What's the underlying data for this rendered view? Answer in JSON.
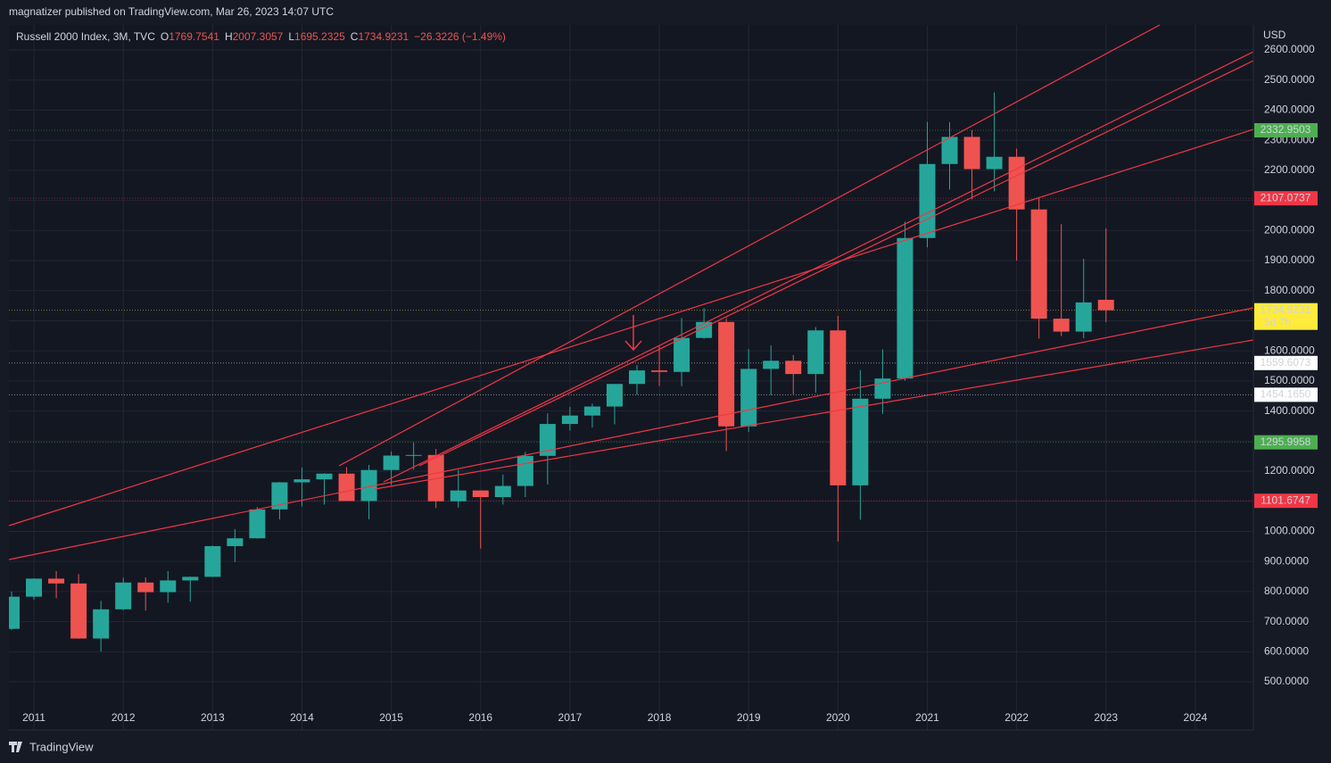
{
  "header": {
    "attribution": "magnatizer published on TradingView.com, Mar 26, 2023 14:07 UTC"
  },
  "chart_data": {
    "type": "candlestick",
    "legend": {
      "symbol": "Russell 2000 Index, 3M, TVC",
      "items": [
        {
          "label": "O",
          "value": "1769.7541"
        },
        {
          "label": "H",
          "value": "2007.3057"
        },
        {
          "label": "L",
          "value": "1695.2325"
        },
        {
          "label": "C",
          "value": "1734.9231"
        }
      ],
      "change": "−26.3226 (−1.49%)"
    },
    "currency": "USD",
    "up_color": "#26a69a",
    "down_color": "#ef5350",
    "x": [
      2010.75,
      2011,
      2011.25,
      2011.5,
      2011.75,
      2012,
      2012.25,
      2012.5,
      2012.75,
      2013,
      2013.25,
      2013.5,
      2013.75,
      2014,
      2014.25,
      2014.5,
      2014.75,
      2015,
      2015.25,
      2015.5,
      2015.75,
      2016,
      2016.25,
      2016.5,
      2016.75,
      2017,
      2017.25,
      2017.5,
      2017.75,
      2018,
      2018.25,
      2018.5,
      2018.75,
      2019,
      2019.25,
      2019.5,
      2019.75,
      2020,
      2020.25,
      2020.5,
      2020.75,
      2021,
      2021.25,
      2021.5,
      2021.75,
      2022,
      2022.25,
      2022.5,
      2022.75,
      2023
    ],
    "open": [
      676,
      783,
      843,
      827,
      644,
      741,
      830,
      798,
      837,
      849,
      951,
      977,
      1073,
      1163,
      1173,
      1192,
      1101,
      1204,
      1252,
      1254,
      1100,
      1136,
      1114,
      1151,
      1251,
      1357,
      1385,
      1415,
      1490,
      1535,
      1530,
      1643,
      1696,
      1349,
      1540,
      1567,
      1523,
      1668,
      1153,
      1441,
      1508,
      1975,
      2221,
      2311,
      2204,
      2245,
      2070,
      1707,
      1664,
      1769.7541
    ],
    "high": [
      800,
      844,
      868,
      858,
      769,
      846,
      847,
      868,
      850,
      953,
      1008,
      1081,
      1164,
      1212,
      1193,
      1213,
      1221,
      1266,
      1295.9958,
      1274,
      1205,
      1136,
      1189,
      1264,
      1392,
      1414,
      1425,
      1490,
      1553,
      1615,
      1709,
      1742,
      1708,
      1606,
      1618,
      1586,
      1679,
      1716,
      1536,
      1605,
      2029,
      2361,
      2360,
      2332.9503,
      2459,
      2272,
      2107.0737,
      2021,
      1906,
      2007.3057
    ],
    "low": [
      672,
      773,
      778,
      643,
      601,
      738,
      737,
      763,
      767,
      849,
      898,
      976,
      1040,
      1083,
      1089,
      1101.6747,
      1040,
      1154,
      1205,
      1078,
      1079,
      943,
      1089,
      1114,
      1156,
      1335,
      1345,
      1356,
      1454.165,
      1483,
      1483,
      1640,
      1267,
      1330,
      1453,
      1456,
      1461,
      966,
      1039,
      1391,
      1501,
      1944,
      2136,
      2104,
      2130,
      1900,
      1641,
      1649,
      1642,
      1695.2325
    ],
    "close": [
      783,
      843,
      827,
      644,
      741,
      830,
      798,
      837,
      849,
      951,
      977,
      1073,
      1163,
      1173,
      1192,
      1101,
      1204,
      1252,
      1254,
      1100,
      1136,
      1114,
      1151,
      1251,
      1357,
      1385,
      1415,
      1490,
      1535,
      1530,
      1643,
      1696,
      1349,
      1540,
      1567,
      1523,
      1668,
      1153,
      1441,
      1508,
      1975,
      2221,
      2311,
      2204,
      2245,
      2070,
      1707,
      1664,
      1761,
      1734.9231
    ],
    "xlim": [
      2010.72,
      2024.65
    ],
    "xticks": [
      2011,
      2012,
      2013,
      2014,
      2015,
      2016,
      2017,
      2018,
      2019,
      2020,
      2021,
      2022,
      2023,
      2024
    ],
    "ylim": [
      340,
      2683
    ],
    "yticks": [
      {
        "value": 500,
        "label": "500.0000"
      },
      {
        "value": 600,
        "label": "600.0000"
      },
      {
        "value": 700,
        "label": "700.0000"
      },
      {
        "value": 800,
        "label": "800.0000"
      },
      {
        "value": 900,
        "label": "900.0000"
      },
      {
        "value": 1000,
        "label": "1000.0000"
      },
      {
        "value": 1100,
        "label": "1100.0000"
      },
      {
        "value": 1200,
        "label": "1200.0000"
      },
      {
        "value": 1300,
        "label": "1300.0000"
      },
      {
        "value": 1400,
        "label": "1400.0000"
      },
      {
        "value": 1500,
        "label": "1500.0000"
      },
      {
        "value": 1600,
        "label": "1600.0000"
      },
      {
        "value": 1700,
        "label": "1700.0000"
      },
      {
        "value": 1800,
        "label": "1800.0000"
      },
      {
        "value": 1900,
        "label": "1900.0000"
      },
      {
        "value": 2000,
        "label": "2000.0000"
      },
      {
        "value": 2100,
        "label": "2100.0000"
      },
      {
        "value": 2200,
        "label": "2200.0000"
      },
      {
        "value": 2300,
        "label": "2300.0000"
      },
      {
        "value": 2400,
        "label": "2400.0000"
      },
      {
        "value": 2500,
        "label": "2500.0000"
      },
      {
        "value": 2600,
        "label": "2600.0000"
      }
    ],
    "grid": true,
    "price_lines": [
      {
        "value": 2332.9503,
        "label": "2332.9503",
        "color": "#4caf50"
      },
      {
        "value": 2107.0737,
        "label": "2107.0737",
        "color": "#f23645"
      },
      {
        "value": 1734.9231,
        "label": "1734.9231",
        "color": "#ffeb3b",
        "countdown": "5d 7h"
      },
      {
        "value": 1559.6073,
        "label": "1559.6073",
        "color": "#ffffff"
      },
      {
        "value": 1454.165,
        "label": "1454.1650",
        "color": "#ffffff"
      },
      {
        "value": 1295.9958,
        "label": "1295.9958",
        "color": "#4caf50"
      },
      {
        "value": 1101.6747,
        "label": "1101.6747",
        "color": "#f23645"
      }
    ]
  },
  "footer": {
    "brand": "TradingView"
  }
}
